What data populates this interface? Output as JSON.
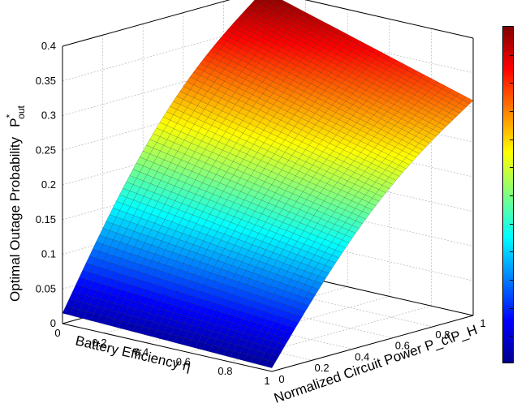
{
  "chart_data": {
    "type": "surface",
    "title": "",
    "xlabel": "Battery Efficiency  η",
    "ylabel": "Normalized Circuit Power P_c\\P_H",
    "zlabel_main": "Optimal Outage Probability",
    "zlabel_symbol": "P",
    "zlabel_sup": "*",
    "zlabel_sub": "out",
    "x_ticks": [
      "0",
      "0.2",
      "0.4",
      "0.6",
      "0.8",
      "1"
    ],
    "y_ticks": [
      "0",
      "0.2",
      "0.4",
      "0.6",
      "0.8",
      "1"
    ],
    "z_ticks": [
      "0",
      "0.05",
      "0.1",
      "0.15",
      "0.2",
      "0.25",
      "0.3",
      "0.35",
      "0.4"
    ],
    "xlim": [
      0,
      1
    ],
    "ylim": [
      0,
      1
    ],
    "zlim": [
      0,
      0.4
    ],
    "grid": true,
    "colormap": "jet",
    "colorbar": true,
    "corners": {
      "eta0_pc0": 0.015,
      "eta1_pc0": 0.005,
      "eta0_pc1": 0.4,
      "eta1_pc1": 0.31
    }
  }
}
